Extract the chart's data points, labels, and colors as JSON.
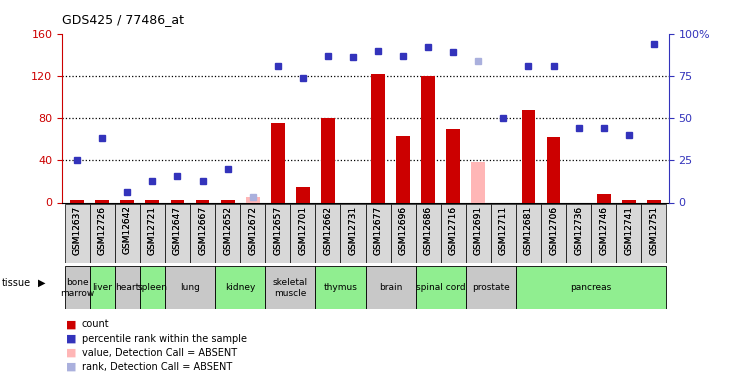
{
  "title": "GDS425 / 77486_at",
  "samples": [
    "GSM12637",
    "GSM12726",
    "GSM12642",
    "GSM12721",
    "GSM12647",
    "GSM12667",
    "GSM12652",
    "GSM12672",
    "GSM12657",
    "GSM12701",
    "GSM12662",
    "GSM12731",
    "GSM12677",
    "GSM12696",
    "GSM12686",
    "GSM12716",
    "GSM12691",
    "GSM12711",
    "GSM12681",
    "GSM12706",
    "GSM12736",
    "GSM12746",
    "GSM12741",
    "GSM12751"
  ],
  "tissues": [
    {
      "name": "bone\nmarrow",
      "start": 0,
      "end": 1,
      "color": "#c8c8c8"
    },
    {
      "name": "liver",
      "start": 1,
      "end": 2,
      "color": "#90ee90"
    },
    {
      "name": "heart",
      "start": 2,
      "end": 3,
      "color": "#c8c8c8"
    },
    {
      "name": "spleen",
      "start": 3,
      "end": 4,
      "color": "#90ee90"
    },
    {
      "name": "lung",
      "start": 4,
      "end": 6,
      "color": "#c8c8c8"
    },
    {
      "name": "kidney",
      "start": 6,
      "end": 8,
      "color": "#90ee90"
    },
    {
      "name": "skeletal\nmuscle",
      "start": 8,
      "end": 10,
      "color": "#c8c8c8"
    },
    {
      "name": "thymus",
      "start": 10,
      "end": 12,
      "color": "#90ee90"
    },
    {
      "name": "brain",
      "start": 12,
      "end": 14,
      "color": "#c8c8c8"
    },
    {
      "name": "spinal cord",
      "start": 14,
      "end": 16,
      "color": "#90ee90"
    },
    {
      "name": "prostate",
      "start": 16,
      "end": 18,
      "color": "#c8c8c8"
    },
    {
      "name": "pancreas",
      "start": 18,
      "end": 24,
      "color": "#90ee90"
    }
  ],
  "count_values": [
    2,
    2,
    2,
    2,
    2,
    2,
    2,
    0,
    75,
    15,
    80,
    0,
    122,
    63,
    120,
    70,
    0,
    0,
    88,
    62,
    0,
    8,
    2,
    2
  ],
  "value_absent": [
    false,
    false,
    false,
    false,
    false,
    false,
    false,
    true,
    false,
    false,
    false,
    false,
    false,
    false,
    false,
    false,
    true,
    false,
    false,
    false,
    false,
    false,
    false,
    false
  ],
  "absent_bar_values": [
    0,
    0,
    0,
    0,
    0,
    0,
    0,
    5,
    0,
    0,
    0,
    0,
    0,
    0,
    0,
    0,
    38,
    0,
    0,
    0,
    0,
    0,
    0,
    0
  ],
  "rank_pct": [
    25,
    38,
    6,
    13,
    16,
    13,
    20,
    3,
    81,
    74,
    87,
    86,
    90,
    87,
    92,
    89,
    84,
    50,
    81,
    81,
    44,
    44,
    40,
    94
  ],
  "rank_absent": [
    false,
    false,
    false,
    false,
    false,
    false,
    false,
    true,
    false,
    false,
    false,
    false,
    false,
    false,
    false,
    false,
    true,
    false,
    false,
    false,
    false,
    false,
    false,
    false
  ],
  "ylim_left": [
    0,
    160
  ],
  "ylim_right": [
    0,
    100
  ],
  "yticks_left": [
    0,
    40,
    80,
    120,
    160
  ],
  "yticks_right": [
    0,
    25,
    50,
    75,
    100
  ],
  "bar_color": "#cc0000",
  "bar_absent_color": "#ffb6b6",
  "rank_color": "#3333bb",
  "rank_absent_color": "#aab0dd",
  "bg_color": "#ffffff"
}
